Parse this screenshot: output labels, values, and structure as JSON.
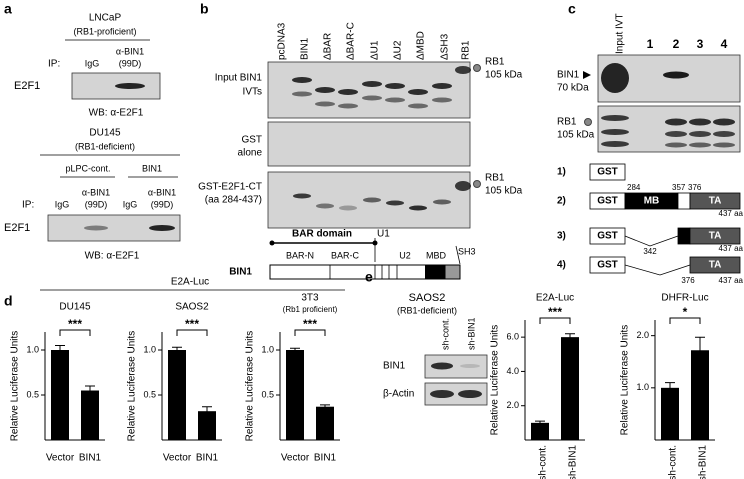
{
  "panels": {
    "a": {
      "label": "a",
      "top": {
        "cell_line": "LNCaP",
        "status": "(RB1-proficient)",
        "ip": "IP:",
        "lanes": [
          "IgG",
          "α-BIN1",
          "(99D)"
        ],
        "row": "E2F1",
        "wb": "WB: α-E2F1"
      },
      "bottom": {
        "cell_line": "DU145",
        "status": "(RB1-deficient)",
        "groups": [
          "pLPC-cont.",
          "BIN1"
        ],
        "ip": "IP:",
        "lanes": [
          "IgG",
          "α-BIN1",
          "(99D)",
          "IgG",
          "α-BIN1",
          "(99D)"
        ],
        "row": "E2F1",
        "wb": "WB: α-E2F1"
      }
    },
    "b": {
      "label": "b",
      "lanes": [
        "pcDNA3",
        "BIN1",
        "ΔBAR",
        "ΔBAR-C",
        "ΔU1",
        "ΔU2",
        "ΔMBD",
        "ΔSH3",
        "RB1"
      ],
      "rows": [
        [
          "Input BIN1",
          "IVTs"
        ],
        [
          "GST",
          "alone"
        ],
        [
          "GST-E2F1-CT",
          "(aa 284-437)"
        ]
      ],
      "markers": [
        [
          "RB1",
          "105 kDa"
        ],
        [
          "RB1",
          "105 kDa"
        ]
      ],
      "domain": {
        "bar": "BAR domain",
        "u1": "U1",
        "bar_n": "BAR-N",
        "bar_c": "BAR-C",
        "u2": "U2",
        "mbd": "MBD",
        "sh3": "SH3",
        "protein": "BIN1"
      }
    },
    "c": {
      "label": "c",
      "lanes": [
        "Input IVT",
        "1",
        "2",
        "3",
        "4"
      ],
      "rows": [
        [
          "BIN1",
          "70 kDa"
        ],
        [
          "RB1",
          "105 kDa"
        ]
      ],
      "constructs": [
        {
          "num": "1)",
          "parts": [
            "GST"
          ]
        },
        {
          "num": "2)",
          "parts": [
            "GST",
            "MB",
            "TA"
          ],
          "positions": [
            "284",
            "357",
            "376",
            "437 aa"
          ]
        },
        {
          "num": "3)",
          "parts": [
            "GST",
            "TA"
          ],
          "positions": [
            "342",
            "437 aa"
          ]
        },
        {
          "num": "4)",
          "parts": [
            "GST",
            "TA"
          ],
          "positions": [
            "376",
            "437 aa"
          ]
        }
      ]
    },
    "d": {
      "label": "d",
      "header": "E2A-Luc"
    },
    "e": {
      "label": "e",
      "blot": {
        "cell_line": "SAOS2",
        "status": "(RB1-deficient)",
        "lanes": [
          "sh-cont.",
          "sh-BIN1"
        ],
        "rows": [
          "BIN1",
          "β-Actin"
        ]
      }
    }
  },
  "chart_data": [
    {
      "type": "bar",
      "title": "DU145",
      "ylabel": "Relative Luciferase Units",
      "categories": [
        "Vector",
        "BIN1"
      ],
      "values": [
        1.0,
        0.55
      ],
      "errors": [
        0.05,
        0.05
      ],
      "ylim": [
        0,
        1.2
      ],
      "yticks": [
        0.5,
        {
          "value": 1,
          "label": "1.0"
        }
      ],
      "significance": "***",
      "color": "#000000"
    },
    {
      "type": "bar",
      "title": "SAOS2",
      "ylabel": "Relative Luciferase Units",
      "categories": [
        "Vector",
        "BIN1"
      ],
      "values": [
        1.0,
        0.32
      ],
      "errors": [
        0.03,
        0.05
      ],
      "ylim": [
        0,
        1.2
      ],
      "yticks": [
        0.5,
        {
          "value": 1,
          "label": "1.0"
        }
      ],
      "significance": "***",
      "color": "#000000"
    },
    {
      "type": "bar",
      "title": "3T3",
      "subtitle": "(Rb1 proficient)",
      "ylabel": "Relative Luciferase Units",
      "categories": [
        "Vector",
        "BIN1"
      ],
      "values": [
        1.0,
        0.37
      ],
      "errors": [
        0.02,
        0.02
      ],
      "ylim": [
        0,
        1.2
      ],
      "yticks": [
        0.5,
        {
          "value": 1,
          "label": "1.0"
        }
      ],
      "significance": "***",
      "color": "#000000"
    },
    {
      "type": "bar",
      "title": "E2A-Luc",
      "ylabel": "Relative Luciferase Units",
      "categories": [
        "sh-cont.",
        "sh-BIN1"
      ],
      "values": [
        1.0,
        6.0
      ],
      "errors": [
        0.1,
        0.2
      ],
      "ylim": [
        0,
        7
      ],
      "yticks": [
        {
          "value": 2,
          "label": "2.0"
        },
        {
          "value": 4,
          "label": "4.0"
        },
        {
          "value": 6,
          "label": "6.0"
        }
      ],
      "significance": "***",
      "color": "#000000"
    },
    {
      "type": "bar",
      "title": "DHFR-Luc",
      "ylabel": "Relative Luciferase Units",
      "categories": [
        "sh-cont.",
        "sh-BIN1"
      ],
      "values": [
        1.0,
        1.72
      ],
      "errors": [
        0.1,
        0.25
      ],
      "ylim": [
        0,
        2.3
      ],
      "yticks": [
        {
          "value": 1,
          "label": "1.0"
        },
        {
          "value": 2,
          "label": "2.0"
        }
      ],
      "significance": "*",
      "color": "#000000"
    }
  ]
}
